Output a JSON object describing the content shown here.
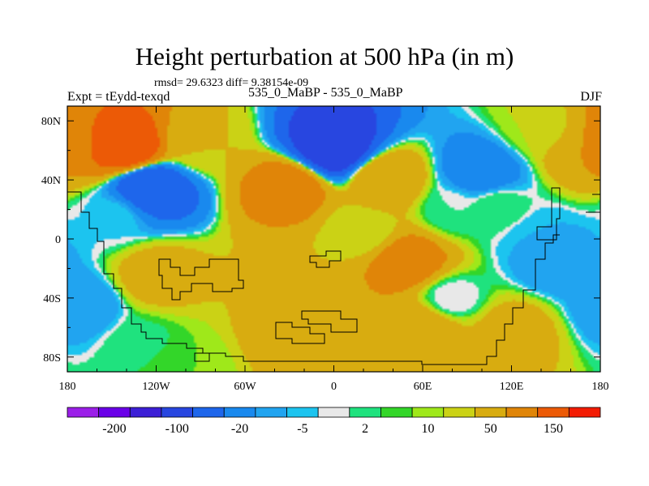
{
  "title": "Height perturbation at 500 hPa (in m)",
  "stats": "rmsd= 29.6323 diff= 9.38154e-09",
  "left_label": "Expt = tEydd-texqd",
  "center_label": "535_0_MaBP - 535_0_MaBP",
  "right_label": "DJF",
  "chart_data": {
    "type": "heatmap",
    "title": "Height perturbation at 500 hPa (in m)",
    "subtitle": "535_0_MaBP - 535_0_MaBP",
    "xlabel": "",
    "ylabel": "",
    "x_ticks": [
      {
        "value": -180,
        "label": "180"
      },
      {
        "value": -120,
        "label": "120W"
      },
      {
        "value": -60,
        "label": "60W"
      },
      {
        "value": 0,
        "label": "0"
      },
      {
        "value": 60,
        "label": "60E"
      },
      {
        "value": 120,
        "label": "120E"
      },
      {
        "value": 180,
        "label": "180"
      }
    ],
    "y_ticks": [
      {
        "value": 80,
        "label": "80N"
      },
      {
        "value": 40,
        "label": "40N"
      },
      {
        "value": 0,
        "label": "0"
      },
      {
        "value": -40,
        "label": "40S"
      },
      {
        "value": -80,
        "label": "80S"
      }
    ],
    "xlim": [
      -180,
      180
    ],
    "ylim": [
      -90,
      90
    ],
    "colorbar": {
      "colors": [
        "#9B1FE8",
        "#6A00E8",
        "#3C1FD6",
        "#2846E0",
        "#1E66EB",
        "#1989EE",
        "#21A4F0",
        "#1CC4EF",
        "#E8E8E8",
        "#1FE27E",
        "#33D629",
        "#9FE81A",
        "#CBD215",
        "#D8AC10",
        "#E08508",
        "#EC5A06",
        "#F31C04"
      ],
      "labels": [
        "-200",
        "-100",
        "-20",
        "-5",
        "2",
        "10",
        "50",
        "150"
      ]
    },
    "field_features": [
      {
        "lon": -140,
        "lat": 62,
        "value": 150,
        "desc": "positive anomaly NW"
      },
      {
        "lon": -160,
        "lat": 70,
        "value": 100
      },
      {
        "lon": -125,
        "lat": 35,
        "value": -100,
        "desc": "negative anomaly"
      },
      {
        "lon": -30,
        "lat": 35,
        "value": 75
      },
      {
        "lon": 35,
        "lat": 40,
        "value": 50
      },
      {
        "lon": 0,
        "lat": 62,
        "value": -150,
        "desc": "strongest negative anomaly"
      },
      {
        "lon": -90,
        "lat": 66,
        "value": 20
      },
      {
        "lon": 100,
        "lat": 45,
        "value": -40
      },
      {
        "lon": 170,
        "lat": 62,
        "value": 50
      },
      {
        "lon": 140,
        "lat": 74,
        "value": 10
      },
      {
        "lon": -120,
        "lat": -25,
        "value": 30
      },
      {
        "lon": -30,
        "lat": -28,
        "value": 20
      },
      {
        "lon": 50,
        "lat": -15,
        "value": 75
      },
      {
        "lon": 150,
        "lat": -15,
        "value": -20
      },
      {
        "lon": 140,
        "lat": 0,
        "value": -10
      },
      {
        "lon": -170,
        "lat": -45,
        "value": -20
      },
      {
        "lon": 80,
        "lat": -40,
        "value": -5
      },
      {
        "lon": 60,
        "lat": -62,
        "value": 50
      },
      {
        "lon": -30,
        "lat": -65,
        "value": 30
      },
      {
        "lon": 120,
        "lat": -62,
        "value": 30
      },
      {
        "lon": -100,
        "lat": -85,
        "value": 5
      },
      {
        "lon": -130,
        "lat": -70,
        "value": 1
      },
      {
        "lon": -150,
        "lat": 15,
        "value": -5
      },
      {
        "lon": 20,
        "lat": 5,
        "value": 10
      },
      {
        "lon": 80,
        "lat": 20,
        "value": -2
      },
      {
        "lon": 110,
        "lat": 22,
        "value": 2
      }
    ]
  }
}
